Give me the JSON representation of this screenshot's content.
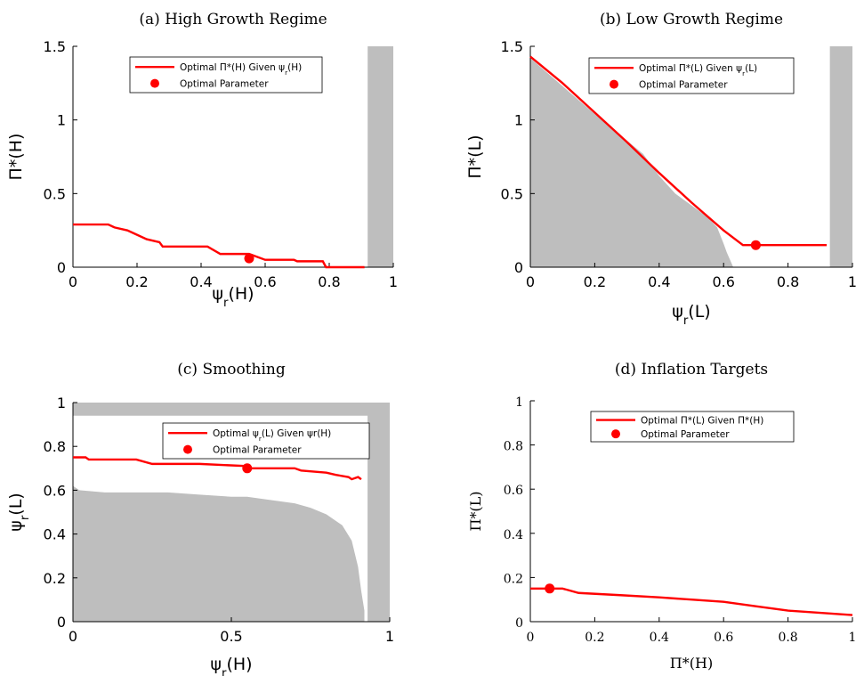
{
  "chart_data": [
    {
      "id": "a",
      "type": "line",
      "title": "(a) High Growth Regime",
      "xlabel": "ψr(H)",
      "ylabel": "Π*(H)",
      "xlim": [
        0,
        1
      ],
      "ylim": [
        0,
        1.5
      ],
      "xticks": [
        "0",
        "0.2",
        "0.4",
        "0.6",
        "0.8",
        "1"
      ],
      "yticks": [
        "0",
        "0.5",
        "1",
        "1.5"
      ],
      "series": [
        {
          "name": "Optimal Π*(H) Given ψr(H)",
          "color": "#ff0000",
          "x": [
            0,
            0.11,
            0.13,
            0.17,
            0.2,
            0.23,
            0.27,
            0.28,
            0.42,
            0.46,
            0.55,
            0.6,
            0.69,
            0.7,
            0.78,
            0.79,
            0.91
          ],
          "y": [
            0.29,
            0.29,
            0.27,
            0.25,
            0.22,
            0.19,
            0.17,
            0.14,
            0.14,
            0.09,
            0.09,
            0.05,
            0.05,
            0.04,
            0.04,
            0.0,
            0.0
          ]
        }
      ],
      "markers": [
        {
          "name": "Optimal Parameter",
          "x": 0.55,
          "y": 0.06,
          "color": "#ff0000"
        }
      ],
      "shaded_regions": [
        {
          "kind": "rect",
          "x": [
            0.92,
            1.0
          ],
          "y": [
            0,
            1.5
          ],
          "color": "#bebebe"
        }
      ],
      "legend": "top-center"
    },
    {
      "id": "b",
      "type": "line",
      "title": "(b) Low Growth Regime",
      "xlabel": "ψr(L)",
      "ylabel": "Π*(L)",
      "xlim": [
        0,
        1
      ],
      "ylim": [
        0,
        1.5
      ],
      "xticks": [
        "0",
        "0.2",
        "0.4",
        "0.6",
        "0.8",
        "1"
      ],
      "yticks": [
        "0",
        "0.5",
        "1",
        "1.5"
      ],
      "series": [
        {
          "name": "Optimal Π*(L) Given ψr(L)",
          "color": "#ff0000",
          "x": [
            0,
            0.1,
            0.2,
            0.3,
            0.4,
            0.5,
            0.6,
            0.66,
            0.7,
            0.92
          ],
          "y": [
            1.43,
            1.25,
            1.05,
            0.85,
            0.64,
            0.44,
            0.25,
            0.15,
            0.15,
            0.15
          ]
        }
      ],
      "markers": [
        {
          "name": "Optimal Parameter",
          "x": 0.7,
          "y": 0.15,
          "color": "#ff0000"
        }
      ],
      "shaded_regions": [
        {
          "kind": "polygon",
          "x": [
            0,
            0,
            0.1,
            0.2,
            0.3,
            0.35,
            0.4,
            0.45,
            0.5,
            0.55,
            0.58,
            0.6,
            0.61,
            0.62,
            0.63
          ],
          "y": [
            0,
            1.42,
            1.23,
            1.04,
            0.86,
            0.77,
            0.62,
            0.5,
            0.42,
            0.34,
            0.27,
            0.16,
            0.1,
            0.05,
            0
          ]
        },
        {
          "kind": "rect",
          "x": [
            0.93,
            1.0
          ],
          "y": [
            0,
            1.5
          ],
          "color": "#bebebe"
        }
      ],
      "legend": "top-center"
    },
    {
      "id": "c",
      "type": "line",
      "title": "(c) Smoothing",
      "xlabel": "ψr(H)",
      "ylabel": "ψr(L)",
      "xlim": [
        0,
        1
      ],
      "ylim": [
        0,
        1
      ],
      "xticks": [
        "0",
        "0.5",
        "1"
      ],
      "yticks": [
        "0",
        "0.2",
        "0.4",
        "0.6",
        "0.8",
        "1"
      ],
      "series": [
        {
          "name": "Optimal ψr(L) Given ψr(H)",
          "color": "#ff0000",
          "x": [
            0,
            0.04,
            0.05,
            0.2,
            0.25,
            0.4,
            0.55,
            0.56,
            0.7,
            0.72,
            0.8,
            0.83,
            0.87,
            0.88,
            0.9,
            0.91
          ],
          "y": [
            0.75,
            0.75,
            0.74,
            0.74,
            0.72,
            0.72,
            0.71,
            0.7,
            0.7,
            0.69,
            0.68,
            0.67,
            0.66,
            0.65,
            0.66,
            0.65
          ]
        }
      ],
      "markers": [
        {
          "name": "Optimal Parameter",
          "x": 0.55,
          "y": 0.7,
          "color": "#ff0000"
        }
      ],
      "shaded_regions": [
        {
          "kind": "rect",
          "x": [
            0,
            1.0
          ],
          "y": [
            0.94,
            1.0
          ],
          "color": "#bebebe"
        },
        {
          "kind": "rect",
          "x": [
            0.93,
            1.0
          ],
          "y": [
            0,
            1.0
          ],
          "color": "#bebebe"
        },
        {
          "kind": "polygon",
          "x": [
            0,
            0,
            0.02,
            0.1,
            0.2,
            0.3,
            0.4,
            0.5,
            0.55,
            0.6,
            0.7,
            0.75,
            0.8,
            0.85,
            0.88,
            0.9,
            0.91,
            0.92,
            0.92
          ],
          "y": [
            0,
            0.62,
            0.6,
            0.59,
            0.59,
            0.59,
            0.58,
            0.57,
            0.57,
            0.56,
            0.54,
            0.52,
            0.49,
            0.44,
            0.37,
            0.25,
            0.14,
            0.05,
            0
          ]
        }
      ],
      "legend": "top-right"
    },
    {
      "id": "d",
      "type": "line",
      "title": "(d) Inflation Targets",
      "xlabel": "Π*(H)",
      "ylabel": "Π*(L)",
      "xlim": [
        0,
        1
      ],
      "ylim": [
        0,
        1
      ],
      "xticks": [
        "0",
        "0.2",
        "0.4",
        "0.6",
        "0.8",
        "1"
      ],
      "yticks": [
        "0",
        "0.2",
        "0.4",
        "0.6",
        "0.8",
        "1"
      ],
      "series": [
        {
          "name": "Optimal   Π*(L) Given  Π*(H)",
          "color": "#ff0000",
          "x": [
            0,
            0.1,
            0.15,
            0.28,
            0.4,
            0.5,
            0.6,
            0.7,
            0.8,
            0.9,
            1.0
          ],
          "y": [
            0.15,
            0.15,
            0.13,
            0.12,
            0.11,
            0.1,
            0.09,
            0.07,
            0.05,
            0.04,
            0.03
          ]
        }
      ],
      "markers": [
        {
          "name": "Optimal Parameter",
          "x": 0.06,
          "y": 0.15,
          "color": "#ff0000"
        }
      ],
      "shaded_regions": [],
      "legend": "top-center"
    }
  ]
}
